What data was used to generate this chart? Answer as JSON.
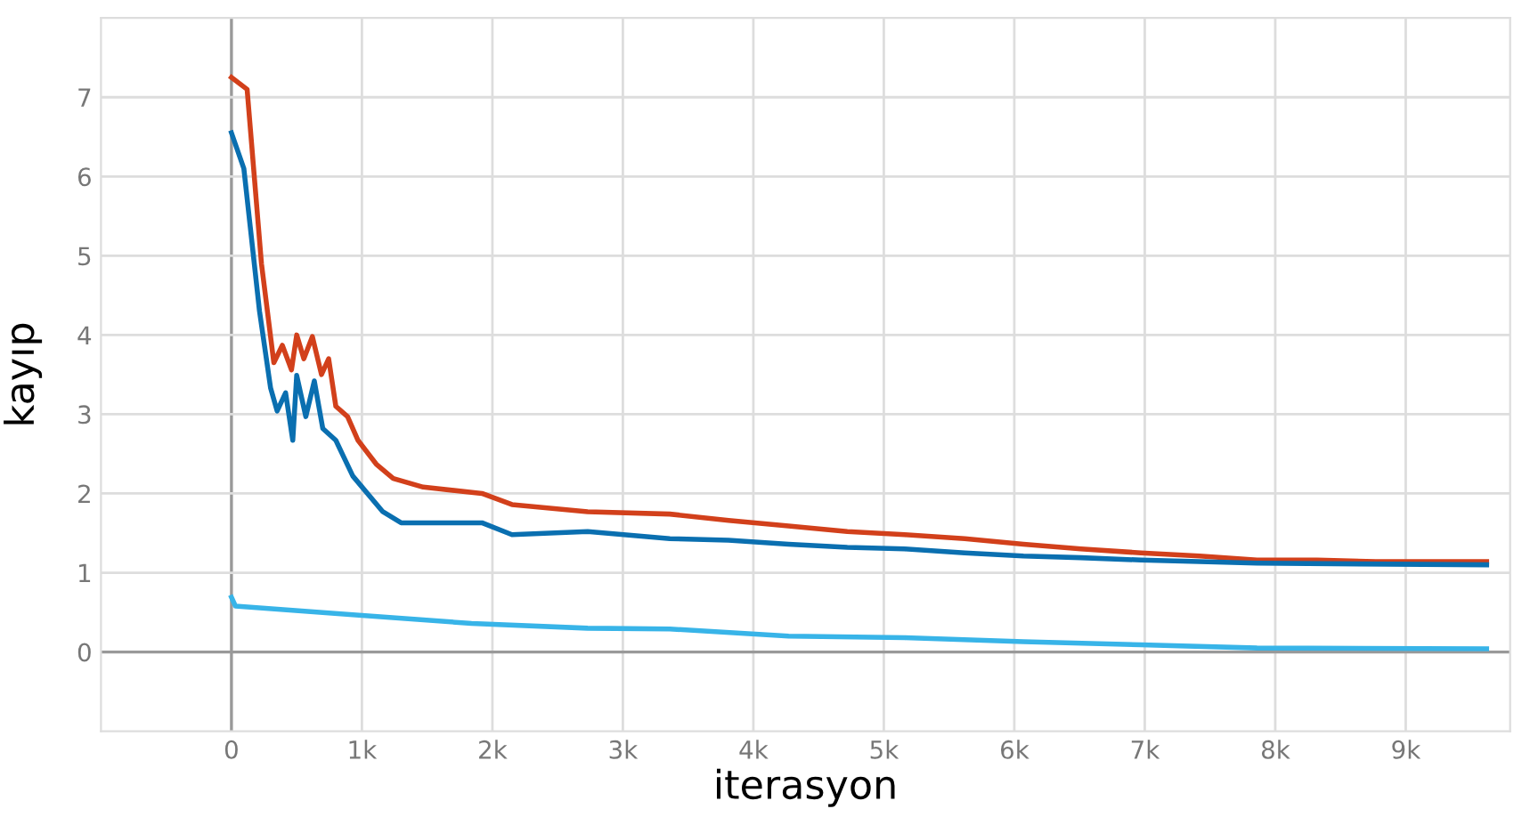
{
  "chart_data": {
    "type": "line",
    "xlabel": "iterasyon",
    "ylabel": "kayıp",
    "xlim": [
      -1000,
      9800
    ],
    "ylim": [
      -1,
      8
    ],
    "xticks": [
      0,
      {
        "value": 1000,
        "label": "1k"
      },
      {
        "value": 2000,
        "label": "2k"
      },
      {
        "value": 3000,
        "label": "3k"
      },
      {
        "value": 4000,
        "label": "4k"
      },
      {
        "value": 5000,
        "label": "5k"
      },
      {
        "value": 6000,
        "label": "6k"
      },
      {
        "value": 7000,
        "label": "7k"
      },
      {
        "value": 8000,
        "label": "8k"
      },
      {
        "value": 9000,
        "label": "9k"
      }
    ],
    "yticks": [
      0,
      1,
      2,
      3,
      4,
      5,
      6,
      7
    ],
    "grid": true,
    "legend": false,
    "line_style": "solid",
    "series": [
      {
        "color": "#d2401b",
        "x": [
          0,
          120,
          230,
          325,
          390,
          460,
          500,
          555,
          620,
          690,
          745,
          800,
          890,
          970,
          1110,
          1240,
          1470,
          1920,
          2150,
          2730,
          3360,
          3810,
          4270,
          4720,
          5160,
          5620,
          6070,
          6510,
          6970,
          7420,
          7860,
          8320,
          8770,
          9620
        ],
        "values": [
          7.25,
          7.1,
          4.9,
          3.65,
          3.87,
          3.56,
          4.0,
          3.7,
          3.98,
          3.5,
          3.7,
          3.1,
          2.97,
          2.67,
          2.37,
          2.19,
          2.08,
          2.0,
          1.86,
          1.77,
          1.74,
          1.66,
          1.59,
          1.52,
          1.48,
          1.43,
          1.36,
          1.3,
          1.25,
          1.21,
          1.16,
          1.16,
          1.14,
          1.14
        ]
      },
      {
        "color": "#0a6fb0",
        "x": [
          0,
          95,
          215,
          300,
          350,
          415,
          470,
          500,
          570,
          635,
          700,
          800,
          930,
          1160,
          1300,
          1610,
          1920,
          2150,
          2730,
          3360,
          3810,
          4270,
          4720,
          5160,
          5620,
          6070,
          6510,
          6970,
          7420,
          7860,
          9620
        ],
        "values": [
          6.55,
          6.1,
          4.3,
          3.33,
          3.04,
          3.27,
          2.67,
          3.49,
          2.97,
          3.42,
          2.82,
          2.67,
          2.22,
          1.77,
          1.63,
          1.63,
          1.63,
          1.48,
          1.52,
          1.43,
          1.41,
          1.36,
          1.32,
          1.3,
          1.25,
          1.21,
          1.19,
          1.16,
          1.14,
          1.12,
          1.1
        ]
      },
      {
        "color": "#38b4e8",
        "x": [
          0,
          30,
          930,
          1840,
          2730,
          3360,
          4270,
          5160,
          6070,
          6970,
          7860,
          9620
        ],
        "values": [
          0.69,
          0.58,
          0.47,
          0.36,
          0.3,
          0.29,
          0.2,
          0.18,
          0.13,
          0.09,
          0.05,
          0.04
        ]
      }
    ]
  }
}
